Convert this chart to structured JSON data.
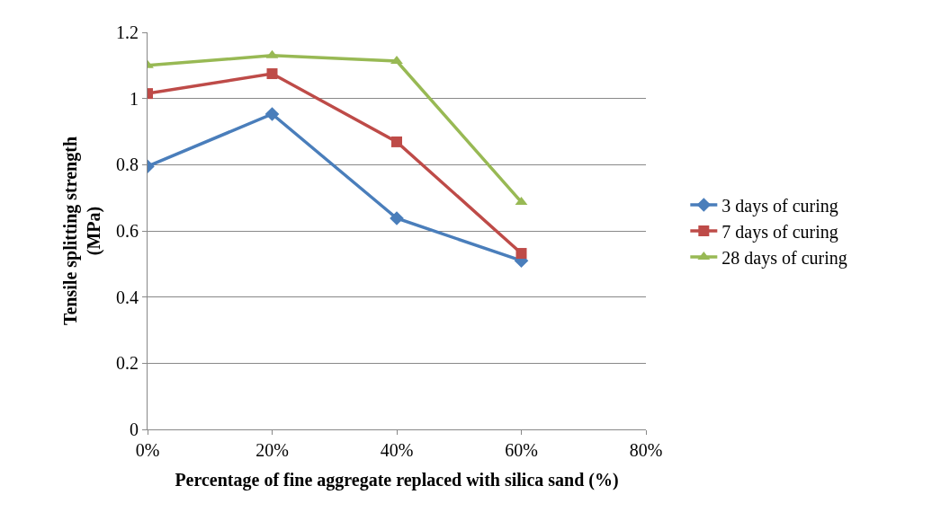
{
  "chart_data": {
    "type": "line",
    "xlabel": "Percentage of fine aggregate replaced with silica sand (%)",
    "ylabel": "Tensile splitting strength (MPa)",
    "x": [
      0,
      20,
      40,
      60
    ],
    "series": [
      {
        "name": "3 days of curing",
        "color": "#4a7ebb",
        "marker": "diamond",
        "values": [
          0.795,
          0.953,
          0.638,
          0.51
        ]
      },
      {
        "name": "7 days of curing",
        "color": "#be4b48",
        "marker": "square",
        "values": [
          1.015,
          1.075,
          0.869,
          0.532
        ]
      },
      {
        "name": "28 days of curing",
        "color": "#98b954",
        "marker": "triangle",
        "values": [
          1.1,
          1.13,
          1.113,
          0.687
        ]
      }
    ],
    "xlim": [
      0,
      80
    ],
    "xticks": [
      {
        "value": 0,
        "label": "0%"
      },
      {
        "value": 20,
        "label": "20%"
      },
      {
        "value": 40,
        "label": "40%"
      },
      {
        "value": 60,
        "label": "60%"
      },
      {
        "value": 80,
        "label": "80%"
      }
    ],
    "ylim": [
      0,
      1.2
    ],
    "yticks": [
      0,
      0.2,
      0.4,
      0.6,
      0.8,
      1,
      1.2
    ],
    "grid": "y",
    "legend": "right",
    "line_style": "solid"
  }
}
